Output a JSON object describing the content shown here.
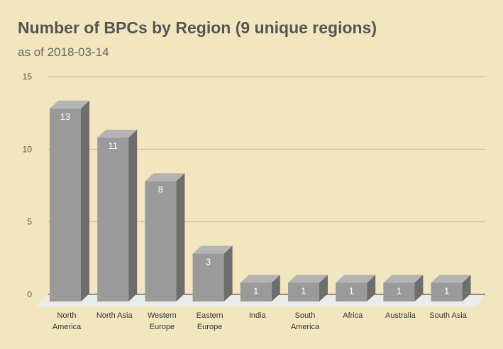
{
  "chart_data": {
    "type": "bar",
    "title": "Number of BPCs by Region (9 unique regions)",
    "subtitle": "as of 2018-03-14",
    "xlabel": "",
    "ylabel": "",
    "categories": [
      [
        "North",
        "America"
      ],
      [
        "North Asia"
      ],
      [
        "Western",
        "Europe"
      ],
      [
        "Eastern",
        "Europe"
      ],
      [
        "India"
      ],
      [
        "South",
        "America"
      ],
      [
        "Africa"
      ],
      [
        "Australia"
      ],
      [
        "South Asia"
      ]
    ],
    "values": [
      13,
      11,
      8,
      3,
      1,
      1,
      1,
      1,
      1
    ],
    "data_labels": [
      "13",
      "11",
      "8",
      "3",
      "1",
      "1",
      "1",
      "1",
      "1"
    ],
    "yticks": [
      0,
      5,
      10,
      15
    ],
    "ytick_labels": [
      "0",
      "5",
      "10",
      "15"
    ],
    "ylim": [
      0,
      15
    ],
    "grid": true,
    "legend": "none",
    "style": "3d-column",
    "colors": {
      "bar_front": "#9a9a9a",
      "bar_top": "#b4b4b4",
      "bar_side": "#6e6e6e",
      "floor": "#ebebeb",
      "grid": "#c8bd98",
      "background": "#f2e6be"
    }
  }
}
